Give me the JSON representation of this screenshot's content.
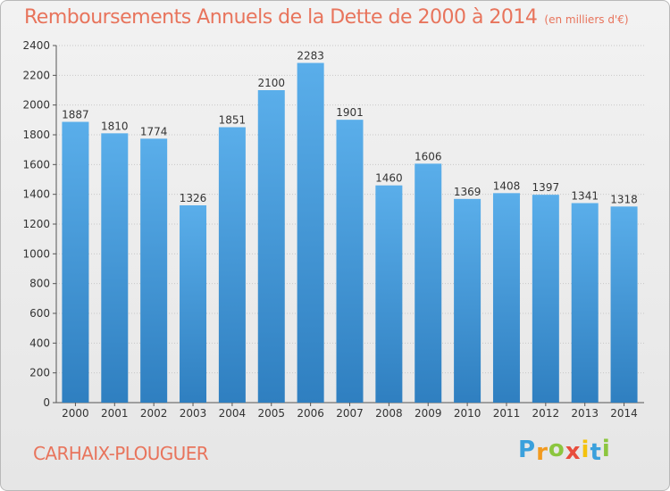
{
  "header": {
    "title": "Remboursements Annuels de la Dette de 2000 à 2014",
    "unit": "(en milliers d'€)"
  },
  "footer": {
    "city": "CARHAIX-PLOUGUER",
    "logo_letters": [
      "P",
      "r",
      "o",
      "x",
      "i",
      "t",
      "i"
    ],
    "logo_colors": [
      "#3aa0dc",
      "#f29a1f",
      "#8cc63f",
      "#e84d3c",
      "#f4c20d",
      "#3aa0dc",
      "#8cc63f"
    ]
  },
  "chart_data": {
    "type": "bar",
    "categories": [
      "2000",
      "2001",
      "2002",
      "2003",
      "2004",
      "2005",
      "2006",
      "2007",
      "2008",
      "2009",
      "2010",
      "2011",
      "2012",
      "2013",
      "2014"
    ],
    "values": [
      1887,
      1810,
      1774,
      1326,
      1851,
      2100,
      2283,
      1901,
      1460,
      1606,
      1369,
      1408,
      1397,
      1341,
      1318
    ],
    "ylim": [
      0,
      2400
    ],
    "yticks": [
      0,
      200,
      400,
      600,
      800,
      1000,
      1200,
      1400,
      1600,
      1800,
      2000,
      2200,
      2400
    ],
    "grid": true,
    "bar_color_top": "#5aaeea",
    "bar_color_bottom": "#2f7fc0"
  }
}
